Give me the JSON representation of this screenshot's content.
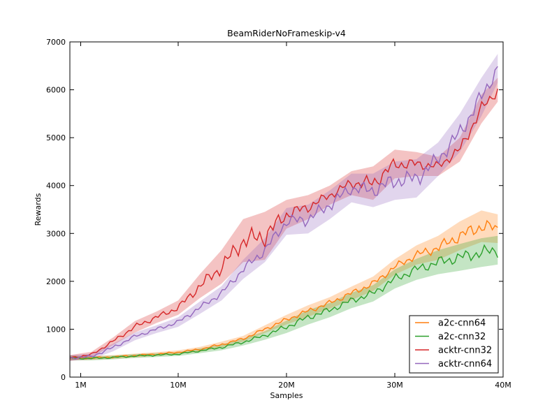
{
  "chart_data": {
    "type": "line",
    "title": "BeamRiderNoFrameskip-v4",
    "xlabel": "Samples",
    "ylabel": "Rewards",
    "xlim": [
      0,
      40
    ],
    "ylim": [
      0,
      7000
    ],
    "x_unit": "M samples",
    "x_ticks": [
      {
        "value": 1,
        "label": "1M"
      },
      {
        "value": 10,
        "label": "10M"
      },
      {
        "value": 20,
        "label": "20M"
      },
      {
        "value": 30,
        "label": "30M"
      },
      {
        "value": 40,
        "label": "40M"
      }
    ],
    "y_ticks": [
      {
        "value": 0,
        "label": "0"
      },
      {
        "value": 1000,
        "label": "1000"
      },
      {
        "value": 2000,
        "label": "2000"
      },
      {
        "value": 3000,
        "label": "3000"
      },
      {
        "value": 4000,
        "label": "4000"
      },
      {
        "value": 5000,
        "label": "5000"
      },
      {
        "value": 6000,
        "label": "6000"
      },
      {
        "value": 7000,
        "label": "7000"
      }
    ],
    "grid": false,
    "legend_position": "lower-right",
    "x": [
      0,
      2,
      4,
      6,
      8,
      10,
      12,
      14,
      16,
      18,
      20,
      22,
      24,
      26,
      28,
      30,
      32,
      34,
      36,
      38,
      39.5
    ],
    "series": [
      {
        "name": "a2c-cnn64",
        "color": "#ff7f0e",
        "values": [
          400,
          400,
          420,
          450,
          480,
          520,
          580,
          680,
          800,
          1000,
          1200,
          1380,
          1550,
          1750,
          1950,
          2300,
          2550,
          2700,
          2950,
          3150,
          3100
        ],
        "band": [
          50,
          40,
          40,
          40,
          40,
          40,
          50,
          60,
          60,
          80,
          100,
          120,
          120,
          140,
          150,
          160,
          200,
          250,
          300,
          330,
          300
        ]
      },
      {
        "name": "a2c-cnn32",
        "color": "#2ca02c",
        "values": [
          400,
          390,
          410,
          440,
          460,
          480,
          550,
          620,
          730,
          870,
          1050,
          1250,
          1400,
          1600,
          1750,
          2050,
          2250,
          2400,
          2500,
          2600,
          2650
        ],
        "band": [
          50,
          40,
          40,
          40,
          40,
          40,
          50,
          60,
          70,
          90,
          130,
          150,
          150,
          160,
          170,
          200,
          220,
          250,
          280,
          300,
          300
        ]
      },
      {
        "name": "acktr-cnn32",
        "color": "#d62728",
        "values": [
          400,
          470,
          750,
          1050,
          1250,
          1450,
          1900,
          2300,
          2850,
          2950,
          3400,
          3550,
          3800,
          4050,
          4050,
          4450,
          4450,
          4400,
          4750,
          5600,
          6000
        ],
        "band": [
          60,
          60,
          80,
          120,
          120,
          150,
          250,
          350,
          450,
          500,
          300,
          250,
          200,
          250,
          350,
          300,
          250,
          200,
          250,
          300,
          250
        ]
      },
      {
        "name": "acktr-cnn64",
        "color": "#9467bd",
        "values": [
          400,
          430,
          620,
          850,
          1000,
          1150,
          1450,
          1750,
          2250,
          2650,
          3250,
          3300,
          3600,
          3950,
          3900,
          4100,
          4150,
          4550,
          5100,
          5850,
          6450
        ],
        "band": [
          60,
          60,
          80,
          80,
          80,
          100,
          130,
          150,
          200,
          250,
          280,
          300,
          300,
          300,
          350,
          400,
          400,
          350,
          400,
          400,
          300
        ]
      }
    ]
  }
}
